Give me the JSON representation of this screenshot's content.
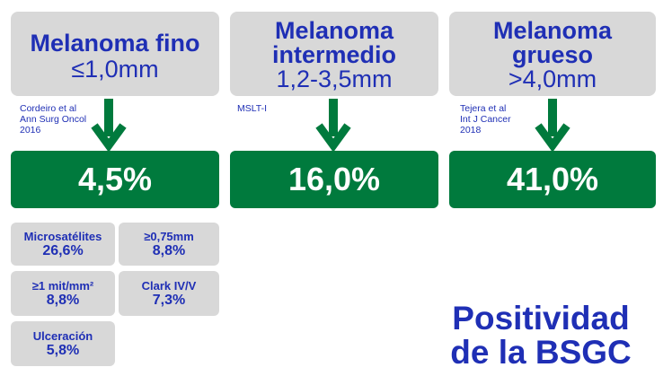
{
  "columns": [
    {
      "title_bold": "Melanoma fino",
      "title_line2": "",
      "size": "≤1,0mm",
      "citation": [
        "Cordeiro et al",
        "Ann Surg Oncol",
        "2016"
      ],
      "value": "4,5%"
    },
    {
      "title_bold": "Melanoma",
      "title_line2": "intermedio",
      "size": "1,2-3,5mm",
      "citation": [
        "MSLT-I"
      ],
      "value": "16,0%"
    },
    {
      "title_bold": "Melanoma",
      "title_line2": "grueso",
      "size": ">4,0mm",
      "citation": [
        "Tejera et al",
        "Int J Cancer",
        "2018"
      ],
      "value": "41,0%"
    }
  ],
  "factors": [
    {
      "label": "Microsatélites",
      "value": "26,6%"
    },
    {
      "label": "≥0,75mm",
      "value": "8,8%"
    },
    {
      "label": "≥1 mit/mm²",
      "value": "8,8%"
    },
    {
      "label": "Clark IV/V",
      "value": "7,3%"
    },
    {
      "label": "Ulceración",
      "value": "5,8%"
    }
  ],
  "main_title": [
    "Positividad",
    "de la BSGC"
  ],
  "colors": {
    "blue": "#1f2fb5",
    "green": "#007a3d",
    "grey": "#d8d8d8"
  }
}
